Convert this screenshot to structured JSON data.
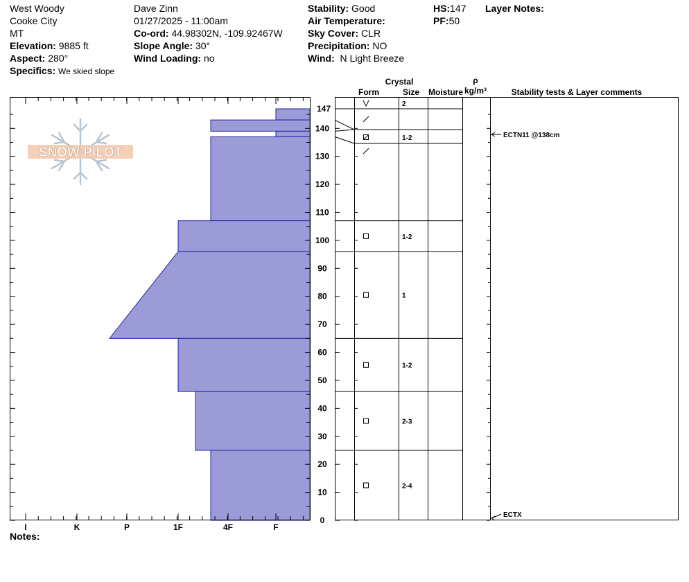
{
  "header": {
    "location": "West Woody",
    "county": "Cooke City",
    "state": "MT",
    "elevation_label": "Elevation:",
    "elevation": "9885 ft",
    "aspect_label": "Aspect:",
    "aspect": "280°",
    "specifics_label": "Specifics:",
    "specifics": "We skied slope",
    "observer": "Dave Zinn",
    "datetime": "01/27/2025 - 11:00am",
    "coord_label": "Co-ord:",
    "coord": "44.98302N, -109.92467W",
    "slope_label": "Slope Angle:",
    "slope": "30°",
    "wind_loading_label": "Wind Loading:",
    "wind_loading": "no",
    "stability_label": "Stability:",
    "stability": "Good",
    "air_temp_label": "Air Temperature:",
    "air_temp": "",
    "sky_label": "Sky Cover:",
    "sky": "CLR",
    "precip_label": "Precipitation:",
    "precip": "NO",
    "wind_label": "Wind:",
    "wind": "N Light Breeze",
    "hs_label": "HS:",
    "hs": "147",
    "pf_label": "PF:",
    "pf": "50",
    "layer_notes_label": "Layer Notes:",
    "notes_label": "Notes:"
  },
  "logo": {
    "text": "SNOW PILOT"
  },
  "columns": {
    "crystal": "Crystal",
    "form": "Form",
    "size": "Size",
    "moisture": "Moisture",
    "rho": "ρ",
    "density_unit": "kg/m³",
    "stability": "Stability tests & Layer comments"
  },
  "chart_data": {
    "type": "snow-profile",
    "hardness_scale": [
      "I",
      "K",
      "P",
      "1F",
      "4F",
      "F"
    ],
    "y_ticks": [
      0,
      10,
      20,
      30,
      40,
      50,
      60,
      70,
      80,
      90,
      100,
      110,
      120,
      130,
      140
    ],
    "y_top_label": 147,
    "ylim": [
      0,
      147
    ],
    "hs": 147,
    "layers": [
      {
        "top": 147,
        "bottom": 143,
        "hardness_top": "F",
        "hardness_bottom": "F",
        "form": "surface-hoar",
        "size": "2"
      },
      {
        "top": 143,
        "bottom": 139,
        "hardness_top": "4F+",
        "hardness_bottom": "4F+",
        "form": "decomposing",
        "size": ""
      },
      {
        "top": 139,
        "bottom": 137,
        "hardness_top": "F",
        "hardness_bottom": "F",
        "form": "mixed-faceted-rounded",
        "size": "1-2"
      },
      {
        "top": 137,
        "bottom": 107,
        "hardness_top": "4F+",
        "hardness_bottom": "4F+",
        "form": "decomposing",
        "size": ""
      },
      {
        "top": 107,
        "bottom": 96,
        "hardness_top": "1F",
        "hardness_bottom": "1F",
        "form": "faceted",
        "size": "1-2"
      },
      {
        "top": 96,
        "bottom": 65,
        "hardness_top": "1F",
        "hardness_bottom": "P+",
        "form": "faceted",
        "size": "1"
      },
      {
        "top": 65,
        "bottom": 46,
        "hardness_top": "1F",
        "hardness_bottom": "1F",
        "form": "faceted",
        "size": "1-2"
      },
      {
        "top": 46,
        "bottom": 25,
        "hardness_top": "1F-",
        "hardness_bottom": "1F-",
        "form": "faceted",
        "size": "2-3"
      },
      {
        "top": 25,
        "bottom": 0,
        "hardness_top": "4F+",
        "hardness_bottom": "4F+",
        "form": "faceted",
        "size": "2-4"
      }
    ],
    "tests": [
      {
        "depth": 138,
        "label": "ECTN11 @138cm"
      },
      {
        "depth": 0,
        "label": "ECTX"
      }
    ]
  }
}
